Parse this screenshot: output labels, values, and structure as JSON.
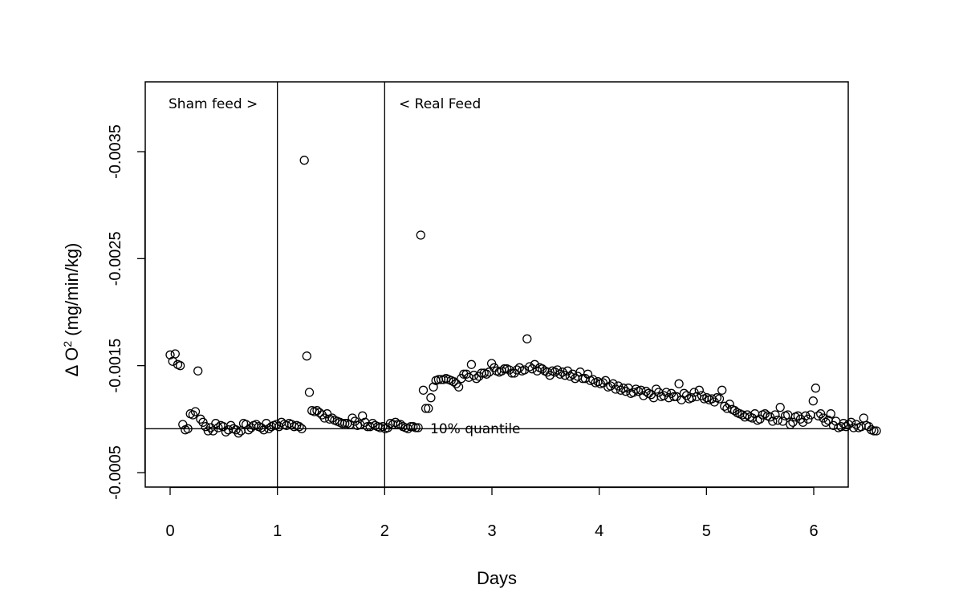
{
  "chart_data": {
    "type": "scatter",
    "xlabel": "Days",
    "ylabel_main": "Δ O",
    "ylabel_sup": "2",
    "ylabel_unit": " (mg/min/kg)",
    "xlim": [
      -0.23,
      6.3
    ],
    "ylim": [
      -0.00043,
      -0.00422
    ],
    "x_ticks": [
      0,
      1,
      2,
      3,
      4,
      5,
      6
    ],
    "y_ticks": [
      -0.0035,
      -0.0025,
      -0.0015,
      -0.0005
    ],
    "y_tick_labels": [
      "-0.0035",
      "-0.0025",
      "-0.0015",
      "-0.0005"
    ],
    "vertical_lines": [
      1,
      2
    ],
    "horizontal_line": -0.00091,
    "annotations": {
      "sham": "Sham feed >",
      "real": "< Real Feed",
      "quantile": "10% quantile"
    },
    "point_x_start": 0.0,
    "point_x_step": 0.0236,
    "values": [
      -0.0016,
      -0.00154,
      -0.00161,
      -0.00151,
      -0.0015,
      -0.00095,
      -0.0009,
      -0.00091,
      -0.00105,
      -0.00104,
      -0.00107,
      -0.00145,
      -0.001,
      -0.00097,
      -0.00093,
      -0.00089,
      -0.00092,
      -0.00089,
      -0.00096,
      -0.00092,
      -0.00094,
      -0.00093,
      -0.00088,
      -0.0009,
      -0.00094,
      -0.00091,
      -0.0009,
      -0.00087,
      -0.00089,
      -0.00096,
      -0.00095,
      -0.0009,
      -0.00092,
      -0.00094,
      -0.00095,
      -0.00093,
      -0.00092,
      -0.0009,
      -0.00096,
      -0.00091,
      -0.00093,
      -0.00094,
      -0.00095,
      -0.00093,
      -0.00097,
      -0.00095,
      -0.00094,
      -0.00096,
      -0.00095,
      -0.00093,
      -0.00094,
      -0.00093,
      -0.00091,
      -0.00342,
      -0.00159,
      -0.00125,
      -0.00108,
      -0.00107,
      -0.00108,
      -0.00106,
      -0.00104,
      -0.00101,
      -0.00105,
      -0.001,
      -0.00101,
      -0.00099,
      -0.00098,
      -0.00097,
      -0.00096,
      -0.00096,
      -0.00096,
      -0.00095,
      -0.00101,
      -0.00098,
      -0.00094,
      -0.00095,
      -0.00103,
      -0.00097,
      -0.00093,
      -0.00093,
      -0.00096,
      -0.00094,
      -0.00093,
      -0.00092,
      -0.00093,
      -0.00091,
      -0.00092,
      -0.00096,
      -0.00095,
      -0.00097,
      -0.00095,
      -0.00095,
      -0.00093,
      -0.00092,
      -0.00091,
      -0.00093,
      -0.00093,
      -0.00092,
      -0.00092,
      -0.00272,
      -0.00127,
      -0.0011,
      -0.0011,
      -0.0012,
      -0.0013,
      -0.00136,
      -0.00137,
      -0.00137,
      -0.00137,
      -0.00138,
      -0.00137,
      -0.00136,
      -0.00135,
      -0.00133,
      -0.0013,
      -0.00138,
      -0.00142,
      -0.00142,
      -0.00139,
      -0.00151,
      -0.00141,
      -0.00138,
      -0.0014,
      -0.00143,
      -0.00143,
      -0.00142,
      -0.00144,
      -0.00152,
      -0.00148,
      -0.00145,
      -0.00144,
      -0.00145,
      -0.00147,
      -0.00147,
      -0.00146,
      -0.00143,
      -0.00143,
      -0.00146,
      -0.00148,
      -0.00145,
      -0.00146,
      -0.00175,
      -0.00149,
      -0.00147,
      -0.00151,
      -0.00145,
      -0.00148,
      -0.00147,
      -0.00145,
      -0.00144,
      -0.00141,
      -0.00145,
      -0.00144,
      -0.00146,
      -0.00142,
      -0.00144,
      -0.00141,
      -0.00145,
      -0.0014,
      -0.00142,
      -0.00138,
      -0.0014,
      -0.00144,
      -0.00138,
      -0.00138,
      -0.00142,
      -0.00136,
      -0.00137,
      -0.00134,
      -0.00135,
      -0.00133,
      -0.00134,
      -0.00136,
      -0.0013,
      -0.00131,
      -0.00133,
      -0.00128,
      -0.00131,
      -0.00127,
      -0.00129,
      -0.00126,
      -0.00129,
      -0.00124,
      -0.00125,
      -0.00128,
      -0.00126,
      -0.00127,
      -0.00122,
      -0.00126,
      -0.00124,
      -0.00123,
      -0.0012,
      -0.00128,
      -0.00125,
      -0.00121,
      -0.00122,
      -0.00125,
      -0.0012,
      -0.00124,
      -0.00121,
      -0.00121,
      -0.00133,
      -0.00118,
      -0.00124,
      -0.00122,
      -0.00119,
      -0.0012,
      -0.00125,
      -0.00121,
      -0.00127,
      -0.00122,
      -0.00119,
      -0.0012,
      -0.00118,
      -0.00119,
      -0.00116,
      -0.0012,
      -0.00119,
      -0.00127,
      -0.00112,
      -0.0011,
      -0.00114,
      -0.00109,
      -0.00108,
      -0.00106,
      -0.00105,
      -0.00104,
      -0.00102,
      -0.00104,
      -0.00102,
      -0.00101,
      -0.00105,
      -0.00099,
      -0.001,
      -0.00104,
      -0.00105,
      -0.00103,
      -0.00102,
      -0.00098,
      -0.00104,
      -0.00099,
      -0.00111,
      -0.00098,
      -0.00103,
      -0.00104,
      -0.00095,
      -0.00097,
      -0.00102,
      -0.00103,
      -0.001,
      -0.00097,
      -0.00103,
      -0.001,
      -0.00104,
      -0.00117,
      -0.00129,
      -0.00103,
      -0.00105,
      -0.00101,
      -0.00097,
      -0.00099,
      -0.00105,
      -0.00094,
      -0.00098,
      -0.00092,
      -0.00093,
      -0.00096,
      -0.00093,
      -0.00095,
      -0.00097,
      -0.00092,
      -0.00095,
      -0.00092,
      -0.00093,
      -0.00101,
      -0.00094,
      -0.00093,
      -0.0009,
      -0.00089,
      -0.00089
    ]
  }
}
